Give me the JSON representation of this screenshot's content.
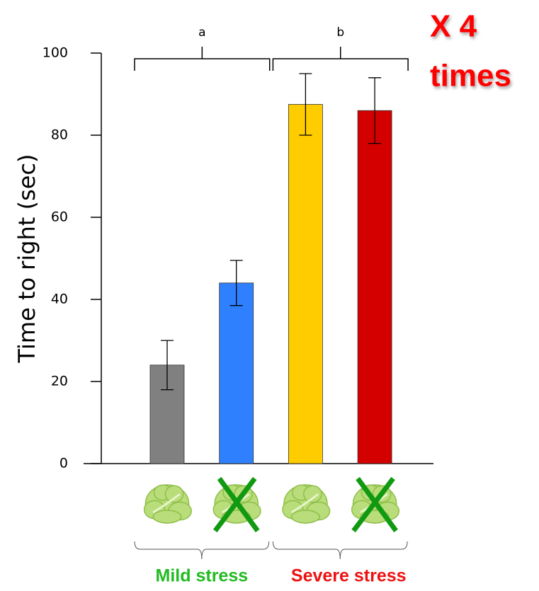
{
  "chart_data": {
    "type": "bar",
    "ylabel": "Time to right (sec)",
    "categories": [
      null,
      null,
      null,
      null
    ],
    "values": [
      24,
      44,
      87.5,
      86
    ],
    "errors": [
      6,
      5.5,
      7.5,
      8
    ],
    "colors": [
      "#808080",
      "#2f80ff",
      "#ffcc00",
      "#d40000"
    ],
    "ylim": [
      0,
      100
    ],
    "yticks": [
      0,
      20,
      40,
      60,
      80,
      100
    ],
    "significance": [
      "a",
      "b"
    ],
    "groups": [
      {
        "label": "Mild stress",
        "color": "#22bb22"
      },
      {
        "label": "Severe stress",
        "color": "#ee1111"
      }
    ],
    "callout": {
      "lines": [
        "X 4",
        "times"
      ],
      "color": "#ff0000"
    }
  }
}
